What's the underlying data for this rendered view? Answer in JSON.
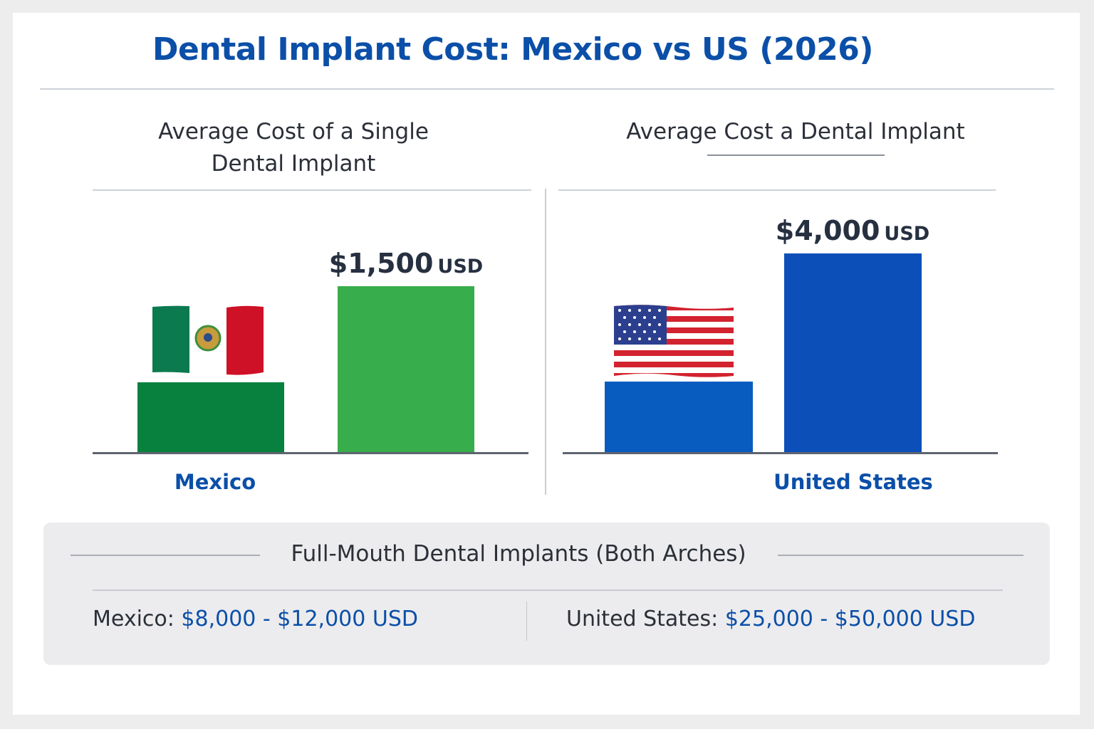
{
  "title": "Dental Implant Cost: Mexico vs US (2026)",
  "chart_data": [
    {
      "type": "bar",
      "title": "Average Cost of a Single Dental Implant",
      "title_lines": [
        "Average Cost of a Single",
        "Dental Implant"
      ],
      "categories": [
        "Mexico"
      ],
      "values": [
        1500
      ],
      "value_label": "$1,500",
      "unit": "USD",
      "colors": {
        "tall_bar": "#38ad4b",
        "base_bar": "#07813d"
      },
      "icon": "mexico-flag-icon"
    },
    {
      "type": "bar",
      "title": "Average Cost a Dental Implant",
      "categories": [
        "United States"
      ],
      "values": [
        4000
      ],
      "value_label": "$4,000",
      "unit": "USD",
      "colors": {
        "tall_bar": "#0c4fb8",
        "base_bar": "#085cbf"
      },
      "icon": "us-flag-icon"
    }
  ],
  "full_mouth": {
    "heading": "Full-Mouth Dental Implants (Both Arches)",
    "mexico_label": "Mexico:",
    "mexico_range": "$8,000 - $12,000 USD",
    "us_label": "United States:",
    "us_range": "$25,000 - $50,000 USD"
  },
  "colors": {
    "accent": "#0b4fa8",
    "text": "#2b2f38"
  }
}
